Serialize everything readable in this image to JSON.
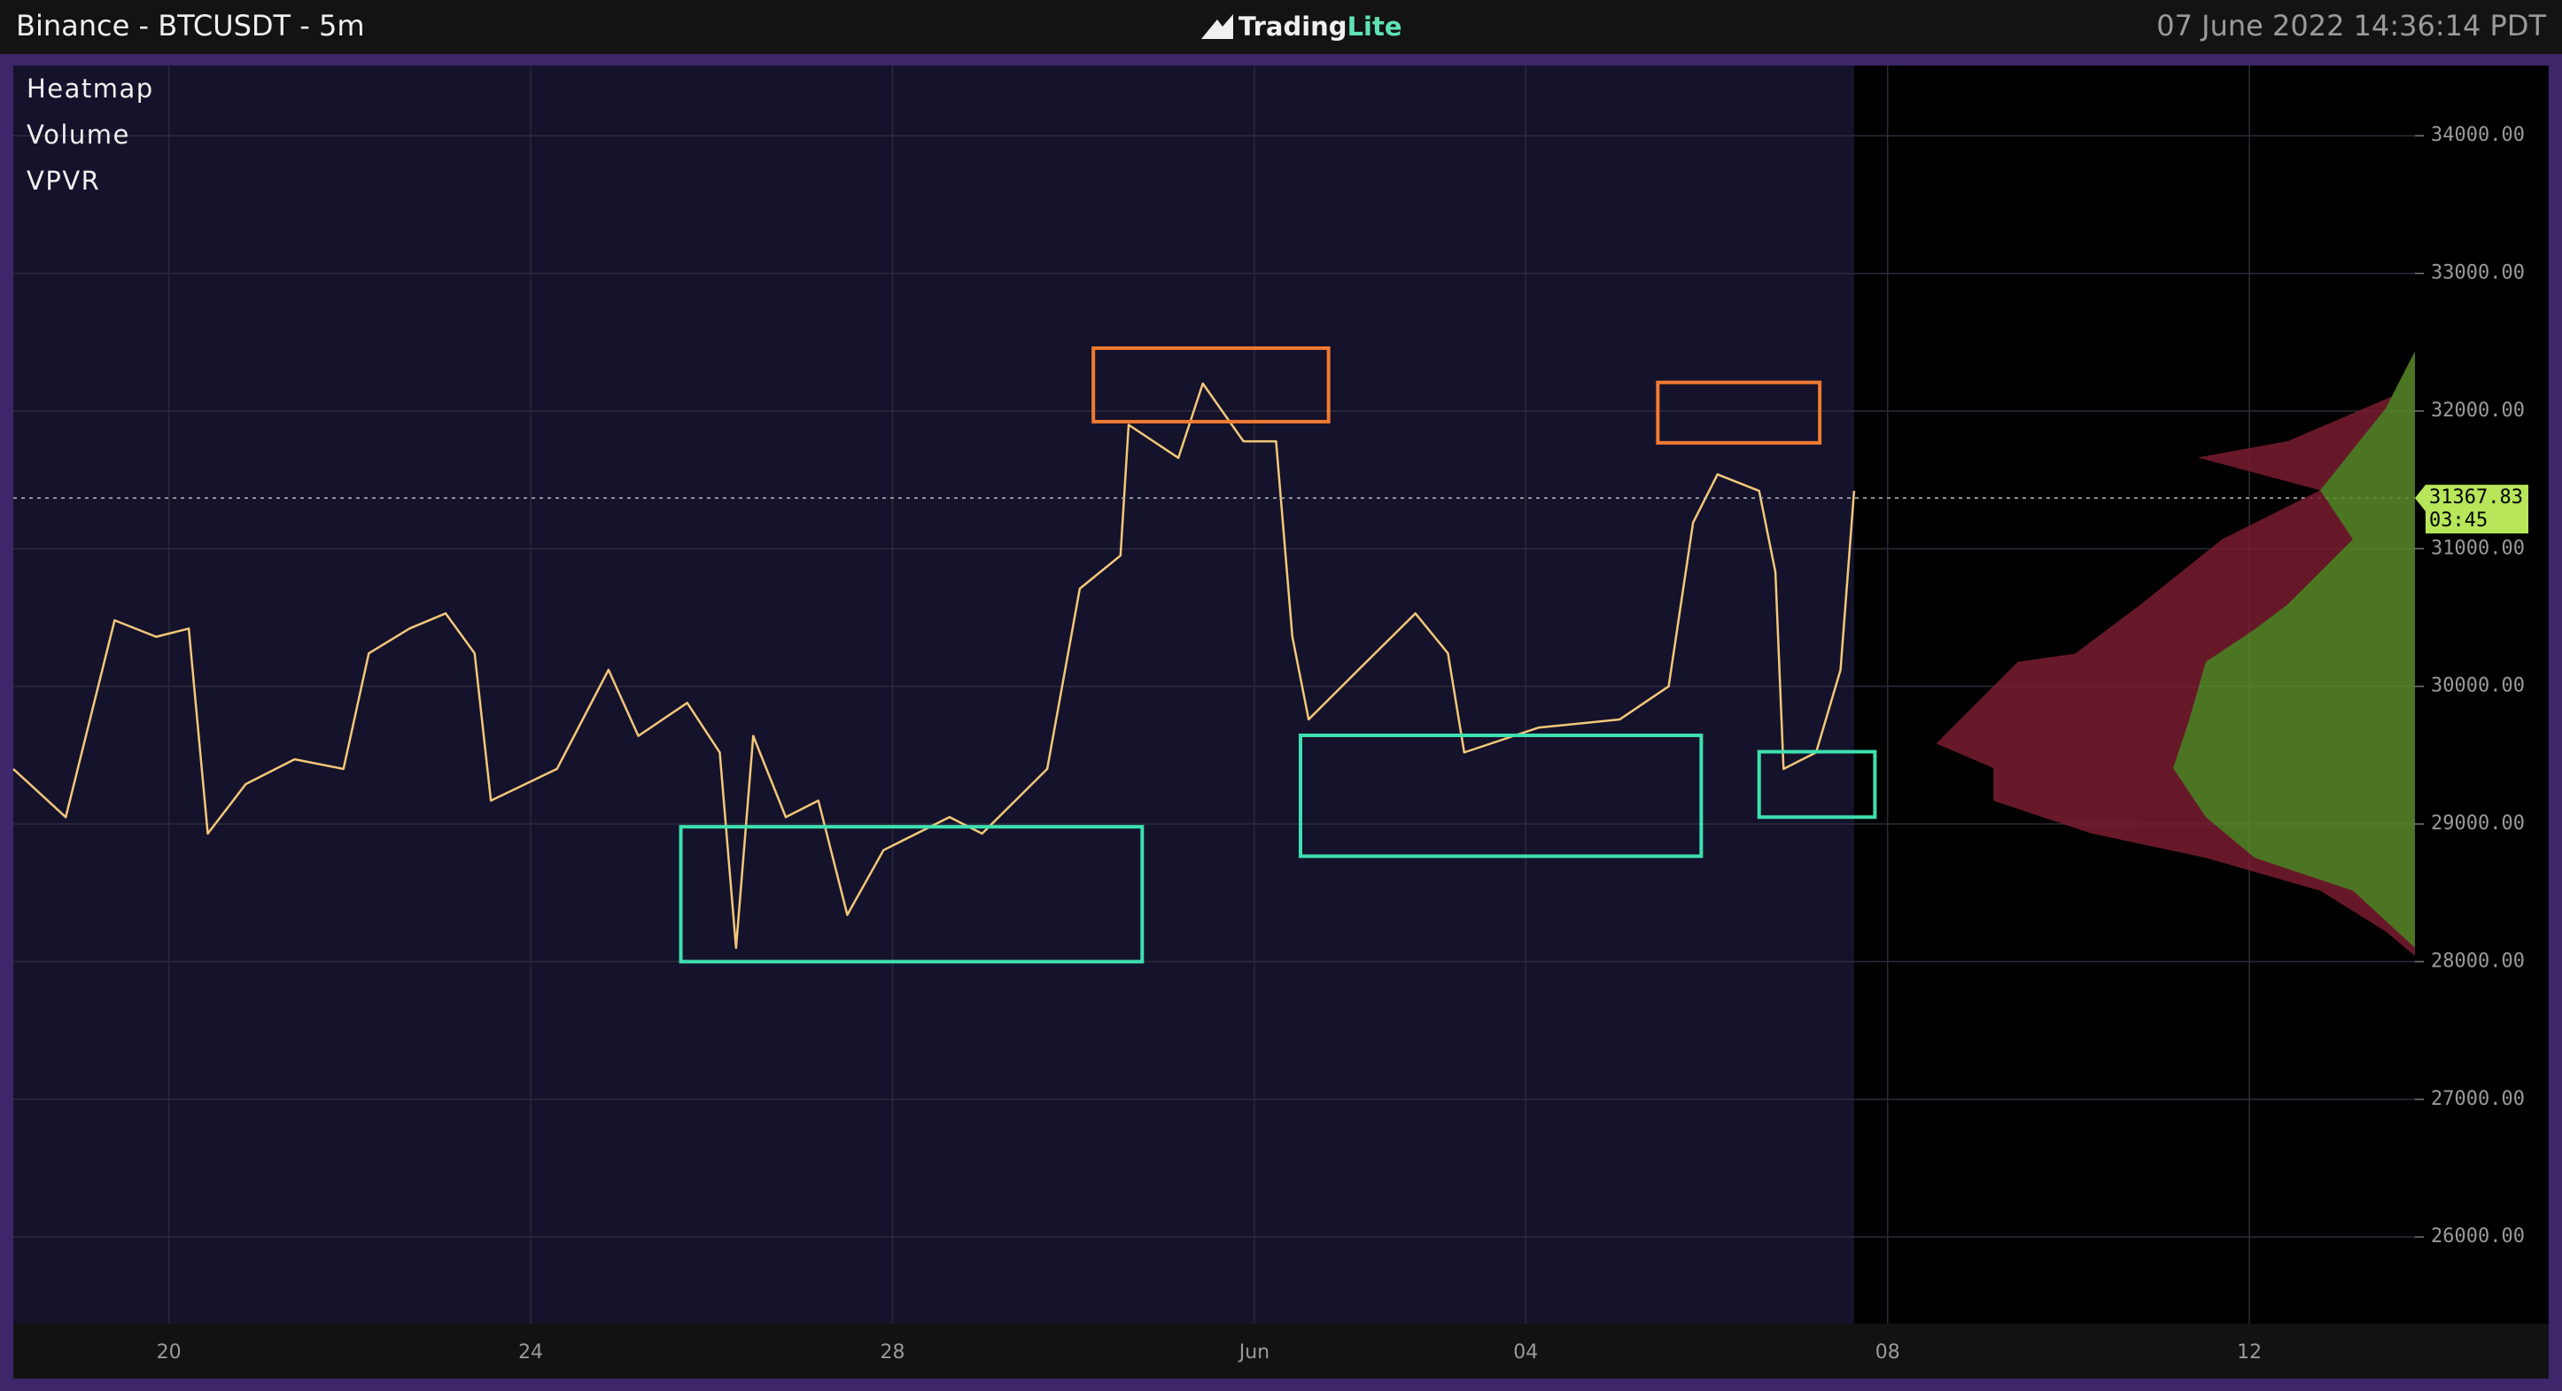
{
  "header": {
    "title": "Binance - BTCUSDT - 5m",
    "logo_main": "Trading",
    "logo_accent": "Lite",
    "timestamp": "07 June 2022 14:36:14 PDT"
  },
  "legend": [
    "Heatmap",
    "Volume",
    "VPVR"
  ],
  "chart_data": {
    "type": "line",
    "series": [
      {
        "color": "#f2c879",
        "x": [
          18.28,
          18.86,
          19.4,
          19.86,
          20.22,
          20.43,
          20.85,
          21.39,
          21.93,
          22.21,
          22.66,
          23.06,
          23.38,
          23.56,
          24.29,
          24.86,
          25.19,
          25.73,
          26.09,
          26.27,
          26.46,
          26.82,
          27.18,
          27.5,
          27.9,
          28.63,
          28.99,
          29.71,
          30.07,
          30.52,
          30.61,
          31.16,
          31.43,
          31.88,
          32.24,
          32.42,
          32.6,
          33.15,
          33.78,
          34.14,
          34.32,
          35.14,
          36.04,
          36.58,
          36.85,
          37.12,
          37.58,
          37.76,
          37.85,
          38.21,
          38.48,
          38.63
        ],
        "values": [
          29400,
          29050,
          30480,
          30360,
          30420,
          28930,
          29290,
          29470,
          29400,
          30240,
          30420,
          30530,
          30240,
          29170,
          29400,
          30120,
          29640,
          29880,
          29520,
          28100,
          29640,
          29050,
          29170,
          28340,
          28810,
          29050,
          28930,
          29400,
          30710,
          30950,
          31900,
          31660,
          32200,
          31780,
          31780,
          30360,
          29760,
          30120,
          30530,
          30240,
          29520,
          29700,
          29760,
          30000,
          31190,
          31540,
          31420,
          30830,
          29400,
          29520,
          30120,
          31420
        ]
      }
    ],
    "xlim": [
      18.28,
      44.83
    ],
    "xticks": [
      20,
      24,
      28,
      {
        "value": 32,
        "label": "Jun"
      },
      {
        "value": 35,
        "label": "04"
      },
      {
        "value": 39,
        "label": "08"
      },
      {
        "value": 43,
        "label": "12"
      }
    ],
    "ylim": [
      25370,
      34510
    ],
    "yticks": [
      {
        "value": 34000,
        "label": "34000.00"
      },
      {
        "value": 33000,
        "label": "33000.00"
      },
      {
        "value": 32000,
        "label": "32000.00"
      },
      {
        "value": 31000,
        "label": "31000.00"
      },
      {
        "value": 30000,
        "label": "30000.00"
      },
      {
        "value": 29000,
        "label": "29000.00"
      },
      {
        "value": 28000,
        "label": "28000.00"
      },
      {
        "value": 27000,
        "label": "27000.00"
      },
      {
        "value": 26000,
        "label": "26000.00"
      }
    ],
    "grid": true,
    "last_price": 31367.83,
    "countdown": "03:45",
    "zones": [
      {
        "color": "#3ee0b0",
        "x": [
          25.66,
          30.76
        ],
        "y": [
          28000,
          28980
        ]
      },
      {
        "color": "#f07a30",
        "x": [
          30.22,
          32.82
        ],
        "y": [
          31923,
          32457
        ]
      },
      {
        "color": "#f07a30",
        "x": [
          36.46,
          38.25
        ],
        "y": [
          31769,
          32208
        ]
      },
      {
        "color": "#3ee0b0",
        "x": [
          32.51,
          36.94
        ],
        "y": [
          28766,
          29644
        ]
      },
      {
        "color": "#3ee0b0",
        "x": [
          37.58,
          38.86
        ],
        "y": [
          29050,
          29525
        ]
      }
    ]
  }
}
